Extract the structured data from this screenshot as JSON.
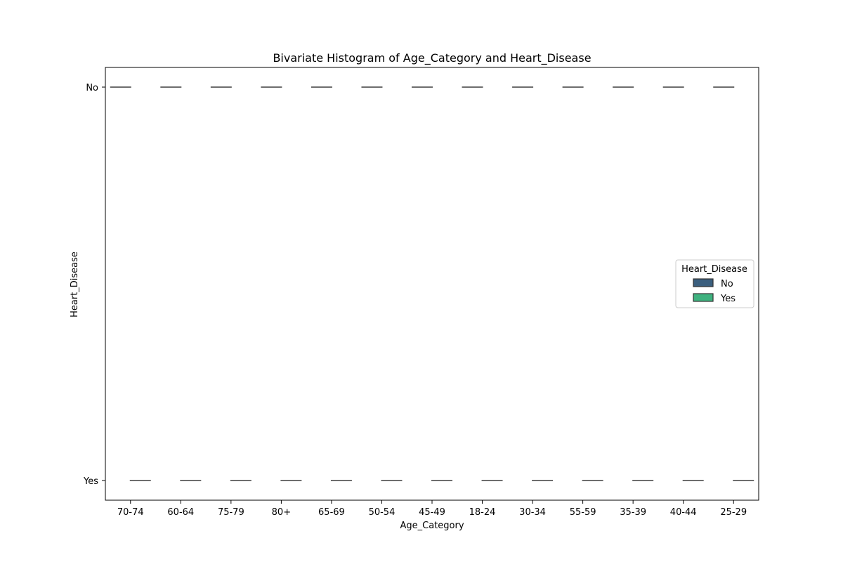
{
  "chart_data": {
    "type": "box",
    "title": "Bivariate Histogram of Age_Category and Heart_Disease",
    "xlabel": "Age_Category",
    "ylabel": "Heart_Disease",
    "categories": [
      "70-74",
      "60-64",
      "75-79",
      "80+",
      "65-69",
      "50-54",
      "45-49",
      "18-24",
      "30-34",
      "55-59",
      "35-39",
      "40-44",
      "25-29"
    ],
    "y_categories": [
      "No",
      "Yes"
    ],
    "legend": {
      "title": "Heart_Disease",
      "placement": "center-right",
      "entries": [
        {
          "label": "No",
          "color": "#3b5f7e"
        },
        {
          "label": "Yes",
          "color": "#3fb27f"
        }
      ]
    },
    "series": [
      {
        "name": "No",
        "color": "#3b5f7e",
        "values": [
          "No",
          "No",
          "No",
          "No",
          "No",
          "No",
          "No",
          "No",
          "No",
          "No",
          "No",
          "No",
          "No"
        ]
      },
      {
        "name": "Yes",
        "color": "#3fb27f",
        "values": [
          "Yes",
          "Yes",
          "Yes",
          "Yes",
          "Yes",
          "Yes",
          "Yes",
          "Yes",
          "Yes",
          "Yes",
          "Yes",
          "Yes",
          "Yes"
        ]
      }
    ],
    "grid": false
  }
}
